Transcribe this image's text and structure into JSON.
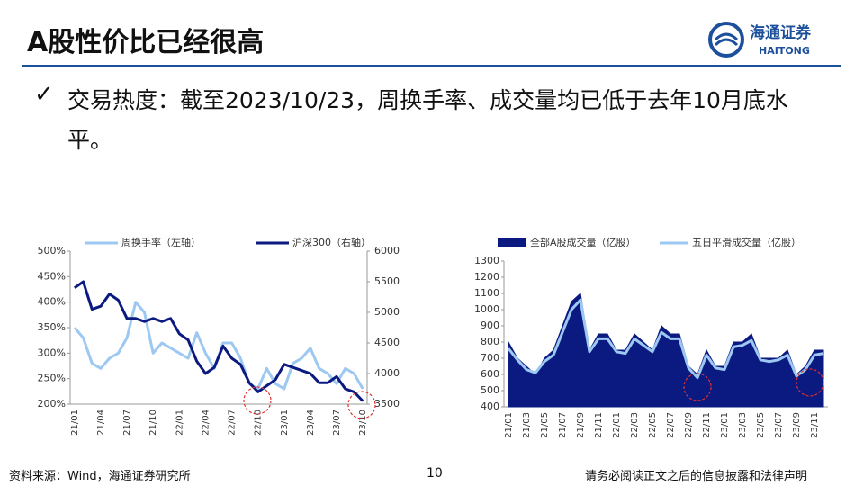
{
  "header": {
    "title": "A股性价比已经很高",
    "logo_cn": "海通证券",
    "logo_en": "HAITONG"
  },
  "bullet": "交易热度：截至2023/10/23，周换手率、成交量均已低于去年10月底水平。",
  "footer": {
    "source": "资料来源：Wind，海通证券研究所",
    "page": "10",
    "disclaimer": "请务必阅读正文之后的信息披露和法律声明"
  },
  "chart_data": [
    {
      "type": "line",
      "categories": [
        "21/01",
        null,
        null,
        "21/04",
        null,
        null,
        "21/07",
        null,
        null,
        "21/10",
        null,
        null,
        "22/01",
        null,
        null,
        "22/04",
        null,
        null,
        "22/07",
        null,
        null,
        "22/10",
        null,
        null,
        "23/01",
        null,
        null,
        "23/04",
        null,
        null,
        "23/07",
        null,
        null,
        "23/10"
      ],
      "series": [
        {
          "name": "周换手率（左轴）",
          "color": "#9cc8f2",
          "values": [
            350,
            330,
            280,
            270,
            290,
            300,
            330,
            400,
            380,
            300,
            320,
            310,
            300,
            290,
            340,
            300,
            270,
            320,
            320,
            290,
            240,
            230,
            270,
            240,
            230,
            280,
            290,
            310,
            270,
            260,
            240,
            270,
            260,
            230
          ]
        },
        {
          "name": "沪深300（右轴）",
          "color": "#0b1a80",
          "axis": "y2",
          "values": [
            5400,
            5500,
            5050,
            5100,
            5300,
            5200,
            4900,
            4900,
            4850,
            4900,
            4850,
            4900,
            4650,
            4550,
            4200,
            4000,
            4100,
            4450,
            4250,
            4150,
            3850,
            3700,
            3800,
            3900,
            4150,
            4100,
            4050,
            4000,
            3850,
            3850,
            3950,
            3750,
            3700,
            3550
          ]
        }
      ],
      "ylim": [
        200,
        500
      ],
      "yticks": [
        {
          "value": 200,
          "label": "200%"
        },
        {
          "value": 250,
          "label": "250%"
        },
        {
          "value": 300,
          "label": "300%"
        },
        {
          "value": 350,
          "label": "350%"
        },
        {
          "value": 400,
          "label": "400%"
        },
        {
          "value": 450,
          "label": "450%"
        },
        {
          "value": 500,
          "label": "500%"
        }
      ],
      "y2lim": [
        3500,
        6000
      ],
      "y2ticks": [
        3500,
        4000,
        4500,
        5000,
        5500,
        6000
      ]
    },
    {
      "type": "line",
      "categories": [
        "21/01",
        null,
        "21/03",
        null,
        "21/05",
        null,
        "21/07",
        null,
        "21/09",
        null,
        "21/11",
        null,
        "22/01",
        null,
        "22/03",
        null,
        "22/05",
        null,
        "22/07",
        null,
        "22/09",
        null,
        "22/11",
        null,
        "23/01",
        null,
        "23/03",
        null,
        "23/05",
        null,
        "23/07",
        null,
        "23/09",
        null,
        "23/11",
        null
      ],
      "series": [
        {
          "name": "全部A股成交量（亿股）",
          "color": "#0b1a80",
          "style": "area",
          "values": [
            800,
            700,
            650,
            600,
            700,
            750,
            900,
            1050,
            1100,
            750,
            850,
            850,
            750,
            750,
            850,
            800,
            750,
            900,
            850,
            850,
            650,
            600,
            750,
            650,
            650,
            800,
            800,
            850,
            700,
            700,
            700,
            750,
            600,
            650,
            750,
            750
          ]
        },
        {
          "name": "五日平滑成交量（亿股）",
          "color": "#9cc8f2",
          "values": [
            760,
            690,
            630,
            610,
            680,
            720,
            860,
            1000,
            1060,
            740,
            820,
            820,
            740,
            730,
            820,
            780,
            740,
            860,
            820,
            820,
            640,
            580,
            720,
            640,
            630,
            770,
            780,
            810,
            690,
            680,
            690,
            720,
            590,
            630,
            720,
            730
          ]
        }
      ],
      "ylim": [
        400,
        1300
      ],
      "yticks": [
        400,
        500,
        600,
        700,
        800,
        900,
        1000,
        1100,
        1200,
        1300
      ]
    }
  ]
}
